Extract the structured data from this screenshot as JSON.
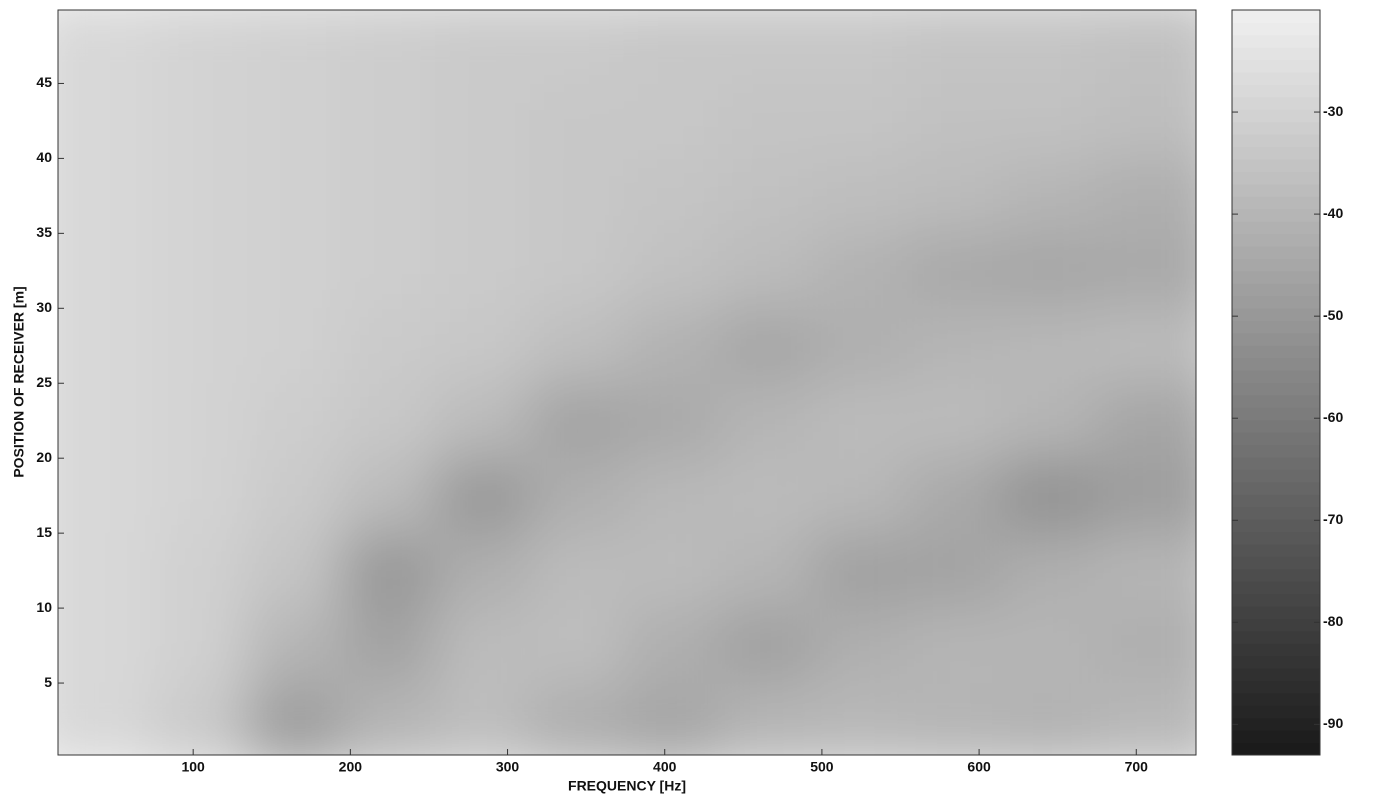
{
  "chart_data": {
    "type": "heatmap",
    "xlabel": "FREQUENCY [Hz]",
    "ylabel": "POSITION OF RECEIVER [m]",
    "x": [
      44,
      104,
      164,
      224,
      284,
      344,
      404,
      464,
      524,
      584,
      644,
      704
    ],
    "y": [
      2.5,
      7.5,
      12.5,
      17.5,
      22.5,
      27.5,
      32.5,
      37.5,
      42.5,
      47.5
    ],
    "z": [
      [
        -28,
        -33,
        -48,
        -40,
        -37,
        -42,
        -45,
        -40,
        -39,
        -40,
        -41,
        -39
      ],
      [
        -28,
        -31,
        -40,
        -46,
        -38,
        -37,
        -42,
        -47,
        -42,
        -40,
        -40,
        -42
      ],
      [
        -28,
        -31,
        -35,
        -50,
        -42,
        -38,
        -38,
        -40,
        -47,
        -46,
        -42,
        -40
      ],
      [
        -28,
        -30,
        -33,
        -38,
        -50,
        -42,
        -39,
        -38,
        -39,
        -44,
        -52,
        -48
      ],
      [
        -28,
        -30,
        -32,
        -34,
        -38,
        -46,
        -44,
        -40,
        -38,
        -38,
        -40,
        -45
      ],
      [
        -28,
        -30,
        -31,
        -33,
        -34,
        -37,
        -41,
        -45,
        -42,
        -40,
        -39,
        -38
      ],
      [
        -28,
        -30,
        -31,
        -32,
        -33,
        -34,
        -36,
        -38,
        -41,
        -44,
        -45,
        -44
      ],
      [
        -28,
        -30,
        -31,
        -32,
        -33,
        -34,
        -35,
        -36,
        -37,
        -38,
        -40,
        -42
      ],
      [
        -28,
        -30,
        -31,
        -32,
        -33,
        -34,
        -34,
        -35,
        -35,
        -36,
        -36,
        -37
      ],
      [
        -28,
        -30,
        -31,
        -32,
        -33,
        -33,
        -34,
        -34,
        -34,
        -35,
        -35,
        -36
      ]
    ],
    "xlim": [
      14,
      738
    ],
    "xticks": [
      100,
      200,
      300,
      400,
      500,
      600,
      700
    ],
    "ylim": [
      0.2,
      49.9
    ],
    "yticks": [
      5,
      10,
      15,
      20,
      25,
      30,
      35,
      40,
      45
    ],
    "colormap": "gray",
    "clim": [
      -93,
      -20
    ],
    "cticks": [
      -30,
      -40,
      -50,
      -60,
      -70,
      -80,
      -90
    ]
  }
}
